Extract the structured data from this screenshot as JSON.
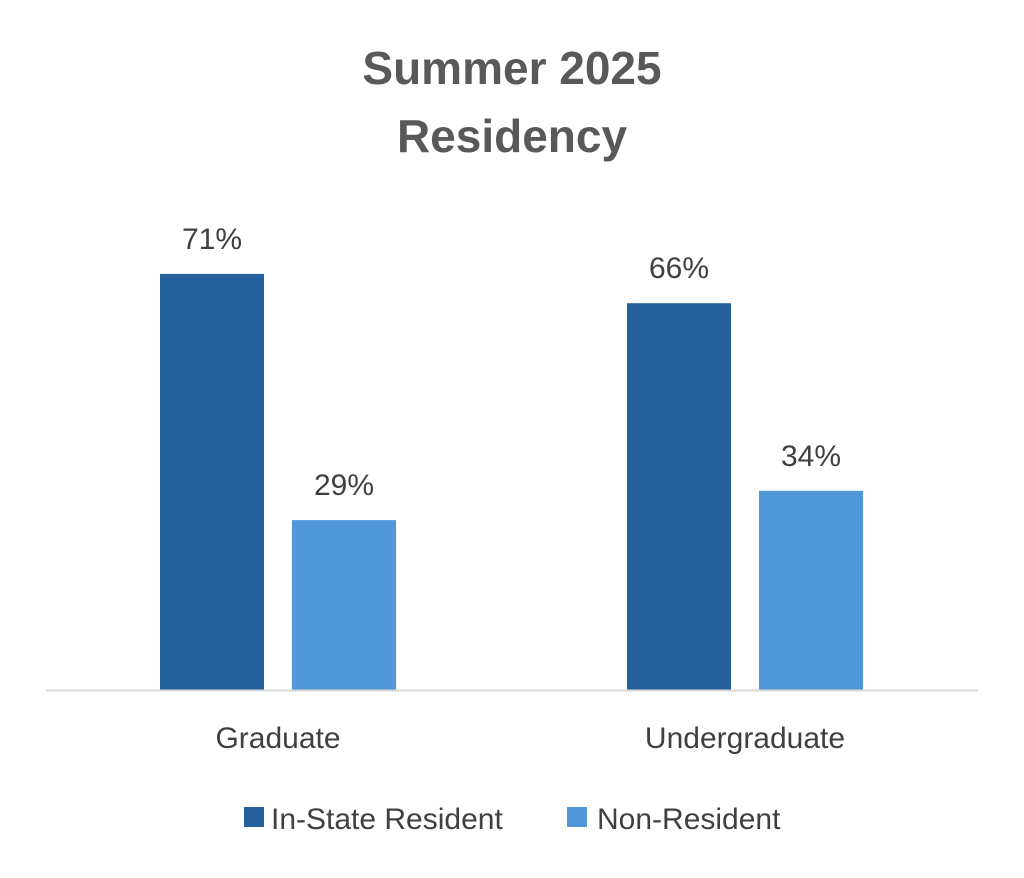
{
  "chart_data": {
    "type": "bar",
    "title": [
      "Summer 2025",
      "Residency"
    ],
    "categories": [
      "Graduate",
      "Undergraduate"
    ],
    "series": [
      {
        "name": "In-State Resident",
        "values": [
          71,
          66
        ],
        "labels": [
          "71%",
          "66%"
        ],
        "color": "#23609C"
      },
      {
        "name": "Non-Resident",
        "values": [
          29,
          34
        ],
        "labels": [
          "29%",
          "34%"
        ],
        "color": "#5198DB"
      }
    ],
    "xlabel": "",
    "ylabel": "",
    "ylim": [
      0,
      100
    ],
    "grid": false,
    "legend_position": "bottom",
    "colors": {
      "title": "#595959",
      "labels": "#404040",
      "axis": "#D9D9D9"
    }
  }
}
